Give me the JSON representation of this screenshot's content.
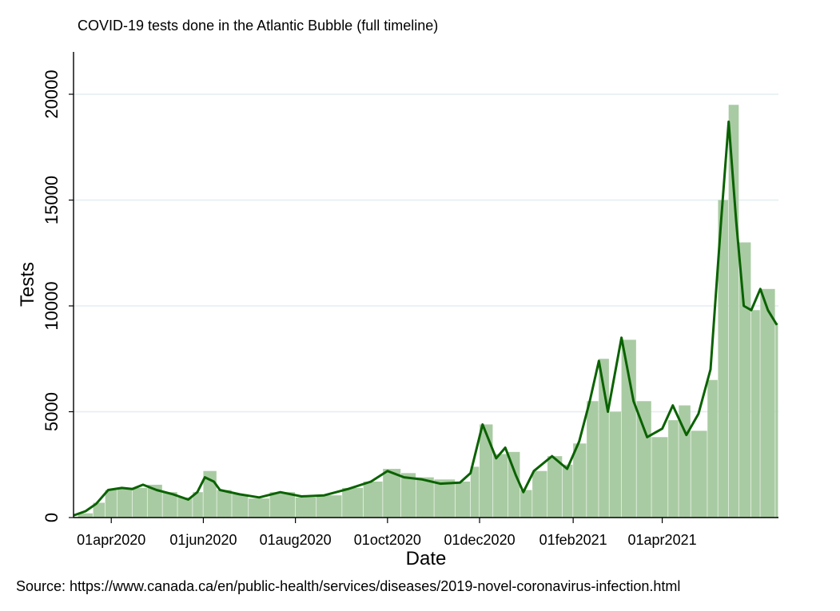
{
  "chart_data": {
    "type": "bar",
    "title": "COVID-19 tests done in the Atlantic Bubble (full timeline)",
    "xlabel": "Date",
    "ylabel": "Tests",
    "ylim": [
      0,
      22000
    ],
    "xlim": [
      "2020-03-07",
      "2021-06-17"
    ],
    "yticks": [
      "0",
      "5000",
      "10000",
      "15000",
      "20000"
    ],
    "xticks": [
      "01apr2020",
      "01jun2020",
      "01aug2020",
      "01oct2020",
      "01dec2020",
      "01feb2021",
      "01apr2021"
    ],
    "grid": "horizontal",
    "legend": "none",
    "source": "Source: https://www.canada.ca/en/public-health/services/diseases/2019-novel-coronavirus-infection.html",
    "colors": {
      "bars": "#a9cba3",
      "line": "#0a6200",
      "grid": "#e3eef0"
    },
    "bar_series": [
      [
        "2020-03-10",
        200
      ],
      [
        "2020-03-20",
        700
      ],
      [
        "2020-03-28",
        1300
      ],
      [
        "2020-04-05",
        1350
      ],
      [
        "2020-04-15",
        1400
      ],
      [
        "2020-04-25",
        1550
      ],
      [
        "2020-05-05",
        1200
      ],
      [
        "2020-05-15",
        950
      ],
      [
        "2020-05-25",
        1200
      ],
      [
        "2020-06-01",
        2200
      ],
      [
        "2020-06-10",
        1300
      ],
      [
        "2020-06-20",
        1100
      ],
      [
        "2020-07-01",
        900
      ],
      [
        "2020-07-15",
        1200
      ],
      [
        "2020-08-01",
        950
      ],
      [
        "2020-08-15",
        1050
      ],
      [
        "2020-09-01",
        1400
      ],
      [
        "2020-09-15",
        1700
      ],
      [
        "2020-09-28",
        2300
      ],
      [
        "2020-10-10",
        2100
      ],
      [
        "2020-10-20",
        1900
      ],
      [
        "2020-11-01",
        1800
      ],
      [
        "2020-11-15",
        1700
      ],
      [
        "2020-11-25",
        2400
      ],
      [
        "2020-12-01",
        4400
      ],
      [
        "2020-12-10",
        3000
      ],
      [
        "2020-12-20",
        3100
      ],
      [
        "2020-12-28",
        1300
      ],
      [
        "2021-01-05",
        2200
      ],
      [
        "2021-01-15",
        2900
      ],
      [
        "2021-01-25",
        2500
      ],
      [
        "2021-02-01",
        3500
      ],
      [
        "2021-02-10",
        5500
      ],
      [
        "2021-02-18",
        7500
      ],
      [
        "2021-02-25",
        5000
      ],
      [
        "2021-03-05",
        8400
      ],
      [
        "2021-03-15",
        5500
      ],
      [
        "2021-03-25",
        3800
      ],
      [
        "2021-04-05",
        4600
      ],
      [
        "2021-04-12",
        5300
      ],
      [
        "2021-04-20",
        4100
      ],
      [
        "2021-05-01",
        6500
      ],
      [
        "2021-05-08",
        15000
      ],
      [
        "2021-05-15",
        19500
      ],
      [
        "2021-05-22",
        13000
      ],
      [
        "2021-05-30",
        9800
      ],
      [
        "2021-06-05",
        10800
      ],
      [
        "2021-06-15",
        9200
      ]
    ],
    "line_series": [
      [
        "2020-03-07",
        100
      ],
      [
        "2020-03-15",
        300
      ],
      [
        "2020-03-22",
        650
      ],
      [
        "2020-03-30",
        1300
      ],
      [
        "2020-04-08",
        1400
      ],
      [
        "2020-04-15",
        1350
      ],
      [
        "2020-04-22",
        1550
      ],
      [
        "2020-05-01",
        1300
      ],
      [
        "2020-05-12",
        1100
      ],
      [
        "2020-05-22",
        850
      ],
      [
        "2020-05-28",
        1200
      ],
      [
        "2020-06-02",
        1900
      ],
      [
        "2020-06-08",
        1700
      ],
      [
        "2020-06-12",
        1300
      ],
      [
        "2020-06-25",
        1100
      ],
      [
        "2020-07-08",
        950
      ],
      [
        "2020-07-22",
        1200
      ],
      [
        "2020-08-05",
        1000
      ],
      [
        "2020-08-20",
        1050
      ],
      [
        "2020-09-05",
        1350
      ],
      [
        "2020-09-20",
        1700
      ],
      [
        "2020-10-01",
        2200
      ],
      [
        "2020-10-12",
        1900
      ],
      [
        "2020-10-24",
        1800
      ],
      [
        "2020-11-05",
        1600
      ],
      [
        "2020-11-18",
        1650
      ],
      [
        "2020-11-25",
        2100
      ],
      [
        "2020-12-03",
        4400
      ],
      [
        "2020-12-12",
        2800
      ],
      [
        "2020-12-18",
        3300
      ],
      [
        "2020-12-25",
        2000
      ],
      [
        "2020-12-30",
        1200
      ],
      [
        "2021-01-06",
        2200
      ],
      [
        "2021-01-18",
        2900
      ],
      [
        "2021-01-28",
        2300
      ],
      [
        "2021-02-05",
        3600
      ],
      [
        "2021-02-12",
        5500
      ],
      [
        "2021-02-18",
        7400
      ],
      [
        "2021-02-24",
        5000
      ],
      [
        "2021-03-05",
        8500
      ],
      [
        "2021-03-13",
        5500
      ],
      [
        "2021-03-22",
        3800
      ],
      [
        "2021-04-01",
        4200
      ],
      [
        "2021-04-08",
        5300
      ],
      [
        "2021-04-17",
        3900
      ],
      [
        "2021-04-25",
        4900
      ],
      [
        "2021-05-03",
        7000
      ],
      [
        "2021-05-10",
        14000
      ],
      [
        "2021-05-15",
        18700
      ],
      [
        "2021-05-20",
        14000
      ],
      [
        "2021-05-25",
        10000
      ],
      [
        "2021-05-30",
        9800
      ],
      [
        "2021-06-05",
        10800
      ],
      [
        "2021-06-10",
        9800
      ],
      [
        "2021-06-16",
        9100
      ]
    ]
  }
}
